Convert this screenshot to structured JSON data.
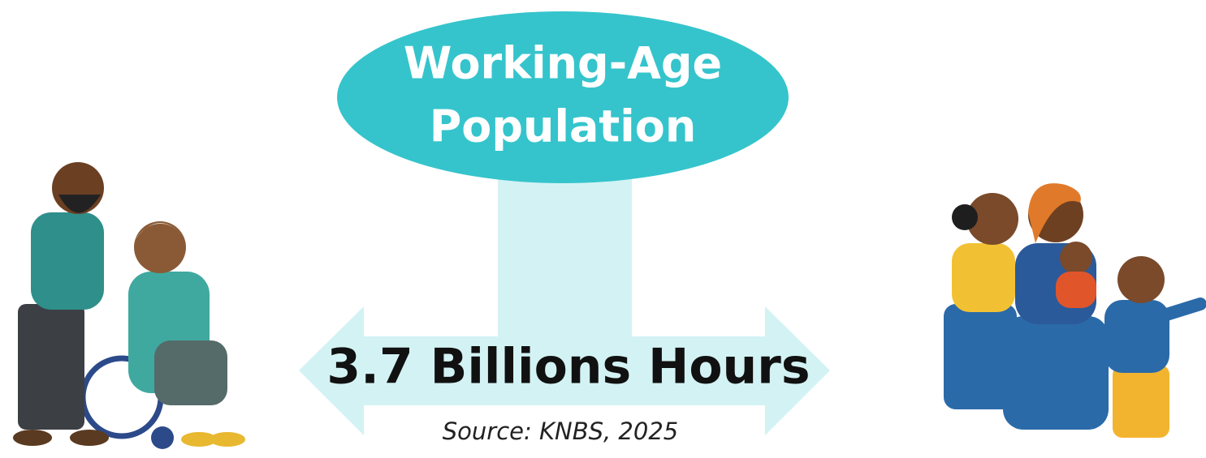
{
  "header": {
    "title_lines": [
      "Working-Age",
      "Population"
    ]
  },
  "main": {
    "value_text": "3.7 Billions Hours",
    "source": "Source: KNBS, 2025"
  }
}
